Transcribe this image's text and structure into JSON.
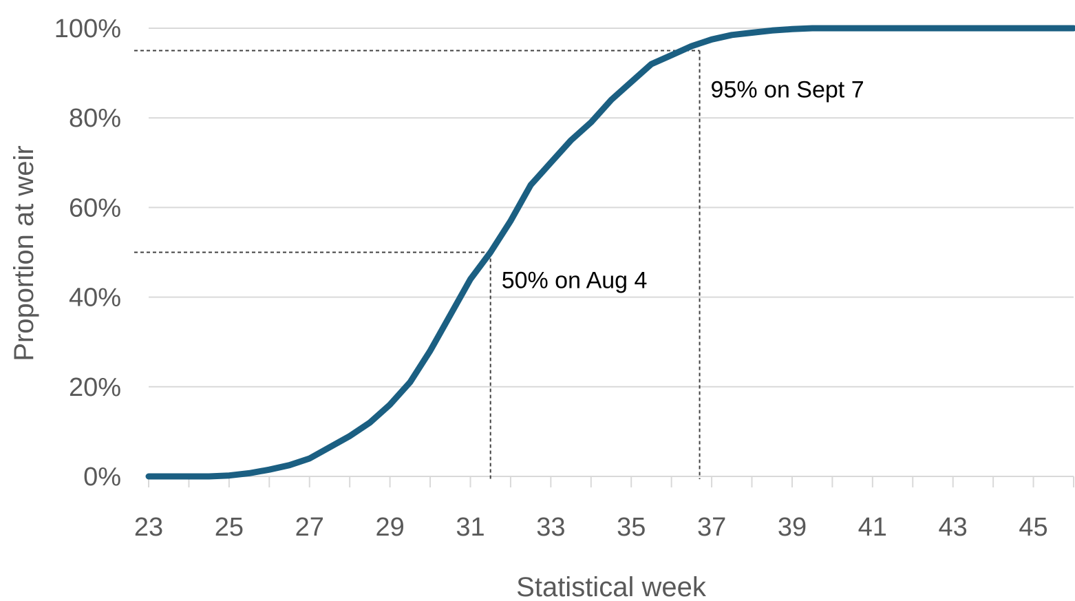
{
  "chart_data": {
    "type": "line",
    "title": "",
    "xlabel": "Statistical week",
    "ylabel": "Proportion at weir",
    "xlim": [
      23,
      46
    ],
    "ylim": [
      0,
      1
    ],
    "x_ticks": [
      23,
      25,
      27,
      29,
      31,
      33,
      35,
      37,
      39,
      41,
      43,
      45
    ],
    "x_tick_labels": [
      "23",
      "25",
      "27",
      "29",
      "31",
      "33",
      "35",
      "37",
      "39",
      "41",
      "43",
      "45"
    ],
    "y_ticks": [
      0,
      0.2,
      0.4,
      0.6,
      0.8,
      1.0
    ],
    "y_tick_labels": [
      "0%",
      "20%",
      "40%",
      "60%",
      "80%",
      "100%"
    ],
    "grid": true,
    "legend": "none",
    "series_color": "#1b5f82",
    "series": [
      {
        "x": [
          23,
          24,
          24.5,
          25,
          25.5,
          26,
          26.5,
          27,
          27.5,
          28,
          28.5,
          29,
          29.5,
          30,
          30.5,
          31,
          31.5,
          32,
          32.5,
          33,
          33.5,
          34,
          34.5,
          35,
          35.5,
          36,
          36.5,
          37,
          37.5,
          38,
          38.5,
          39,
          39.5,
          40,
          41,
          42,
          43,
          44,
          45,
          46
        ],
        "y": [
          0,
          0,
          0,
          0.002,
          0.007,
          0.015,
          0.025,
          0.04,
          0.065,
          0.09,
          0.12,
          0.16,
          0.21,
          0.28,
          0.36,
          0.44,
          0.5,
          0.57,
          0.65,
          0.7,
          0.75,
          0.79,
          0.84,
          0.88,
          0.92,
          0.94,
          0.96,
          0.975,
          0.985,
          0.99,
          0.995,
          0.998,
          1.0,
          1.0,
          1.0,
          1.0,
          1.0,
          1.0,
          1.0,
          1.0
        ]
      }
    ],
    "annotations": [
      {
        "text": "50% on Aug 4",
        "x": 31.5,
        "y": 0.5
      },
      {
        "text": "95% on Sept 7",
        "x": 36.7,
        "y": 0.95
      }
    ]
  }
}
